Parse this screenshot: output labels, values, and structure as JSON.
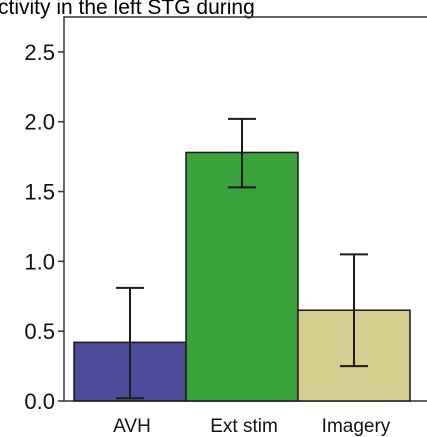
{
  "chart_data": {
    "type": "bar",
    "title": "ctivity in the left STG during",
    "xlabel": "",
    "ylabel": "",
    "categories": [
      "AVH",
      "Ext stim",
      "Imagery"
    ],
    "values": [
      0.42,
      1.78,
      0.65
    ],
    "error_high": [
      0.81,
      2.02,
      1.05
    ],
    "error_low": [
      0.02,
      1.53,
      0.25
    ],
    "bar_colors": [
      "#4c4c9a",
      "#3aa23a",
      "#d5cd8e"
    ],
    "ylim": [
      0,
      2.75
    ],
    "yticks": [
      0.0,
      0.5,
      1.0,
      1.5,
      2.0,
      2.5
    ],
    "ytick_labels": [
      "0.0",
      "0.5",
      "1.0",
      "1.5",
      "2.0",
      "2.5"
    ],
    "grid": false,
    "legend": "none"
  }
}
